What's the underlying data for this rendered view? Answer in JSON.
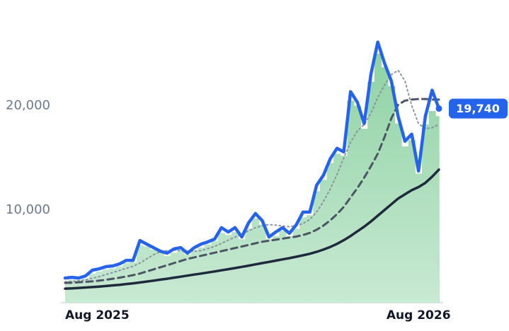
{
  "chart_data": {
    "type": "line",
    "categories": [
      "Aug 2025",
      null,
      null,
      null,
      null,
      null,
      null,
      null,
      null,
      null,
      null,
      null,
      null,
      null,
      null,
      null,
      null,
      null,
      null,
      null,
      null,
      null,
      null,
      null,
      null,
      null,
      null,
      null,
      null,
      null,
      null,
      null,
      null,
      null,
      null,
      null,
      null,
      null,
      null,
      null,
      null,
      null,
      null,
      null,
      null,
      null,
      null,
      null,
      null,
      null,
      null,
      null,
      "Aug 2026",
      null,
      null,
      null
    ],
    "ylim": [
      1100,
      28800
    ],
    "yticks": [
      {
        "value": 10000,
        "label": "10,000"
      },
      {
        "value": 20000,
        "label": "20,000"
      }
    ],
    "grid": false,
    "series": [
      {
        "style": "bar",
        "color": "#86cf9d",
        "values": [
          3200,
          3300,
          3300,
          3400,
          3900,
          4100,
          4300,
          4400,
          4600,
          4900,
          5000,
          6600,
          6500,
          6200,
          5900,
          5600,
          5900,
          6100,
          5700,
          6100,
          6400,
          6700,
          7000,
          7800,
          7600,
          7900,
          7200,
          8200,
          9200,
          8600,
          7200,
          7500,
          8000,
          7500,
          8200,
          9300,
          9500,
          11800,
          12900,
          14500,
          15400,
          15200,
          20500,
          20000,
          17800,
          22300,
          25000,
          23700,
          21900,
          18300,
          16100,
          16700,
          13500,
          18200,
          19500,
          19000
        ]
      },
      {
        "style": "dotted",
        "color": "#8892a0",
        "values": [
          3100,
          3150,
          3200,
          3300,
          3450,
          3600,
          3800,
          4000,
          4200,
          4400,
          4600,
          4900,
          5300,
          5700,
          6000,
          6100,
          6150,
          6100,
          6050,
          6050,
          6100,
          6300,
          6500,
          6800,
          7100,
          7400,
          7700,
          8000,
          8300,
          8500,
          8600,
          8550,
          8450,
          8400,
          8500,
          8700,
          9100,
          9800,
          10800,
          12000,
          13400,
          15000,
          16500,
          17600,
          18200,
          19300,
          20800,
          22000,
          23000,
          23400,
          22400,
          20000,
          18300,
          17800,
          17900,
          18200
        ]
      },
      {
        "style": "dashed",
        "color": "#4b5563",
        "values": [
          3000,
          3020,
          3060,
          3100,
          3150,
          3220,
          3300,
          3400,
          3500,
          3620,
          3750,
          3900,
          4100,
          4300,
          4500,
          4700,
          4900,
          5100,
          5300,
          5450,
          5600,
          5750,
          5900,
          6050,
          6200,
          6350,
          6500,
          6650,
          6800,
          6950,
          7050,
          7150,
          7250,
          7350,
          7450,
          7600,
          7800,
          8100,
          8500,
          9000,
          9600,
          10300,
          11200,
          12100,
          13100,
          14200,
          15400,
          17000,
          18800,
          20100,
          20500,
          20600,
          20650,
          20650,
          20600,
          20600
        ]
      },
      {
        "style": "solid",
        "color": "#1e293b",
        "values": [
          2450,
          2480,
          2520,
          2560,
          2600,
          2650,
          2700,
          2760,
          2820,
          2890,
          2960,
          3040,
          3130,
          3220,
          3310,
          3400,
          3500,
          3600,
          3700,
          3800,
          3900,
          4000,
          4100,
          4210,
          4320,
          4430,
          4540,
          4660,
          4780,
          4900,
          5020,
          5140,
          5260,
          5380,
          5510,
          5650,
          5800,
          5980,
          6200,
          6450,
          6750,
          7100,
          7500,
          7950,
          8400,
          8900,
          9450,
          10000,
          10550,
          11100,
          11500,
          11900,
          12200,
          12600,
          13200,
          13880
        ]
      },
      {
        "style": "main",
        "color": "#2563eb",
        "values": [
          3470,
          3540,
          3470,
          3670,
          4220,
          4350,
          4560,
          4630,
          4830,
          5170,
          5170,
          7070,
          6730,
          6390,
          6050,
          5850,
          6260,
          6390,
          5850,
          6390,
          6730,
          6940,
          7210,
          8300,
          7890,
          8300,
          7410,
          8780,
          9660,
          8980,
          7410,
          7890,
          8300,
          7760,
          8570,
          9800,
          9800,
          12380,
          13330,
          14900,
          15920,
          15580,
          21360,
          20340,
          18300,
          23050,
          26120,
          24080,
          22380,
          18980,
          16600,
          17280,
          13740,
          18980,
          21500,
          19740
        ],
        "value_labels": [
          null,
          null,
          null,
          null,
          null,
          null,
          null,
          null,
          null,
          null,
          null,
          null,
          null,
          null,
          null,
          null,
          null,
          null,
          null,
          null,
          null,
          null,
          null,
          null,
          null,
          null,
          null,
          null,
          null,
          null,
          null,
          null,
          null,
          null,
          null,
          null,
          null,
          null,
          null,
          null,
          null,
          null,
          null,
          null,
          null,
          null,
          null,
          null,
          null,
          null,
          null,
          null,
          null,
          null,
          null,
          "19,740"
        ]
      }
    ]
  }
}
